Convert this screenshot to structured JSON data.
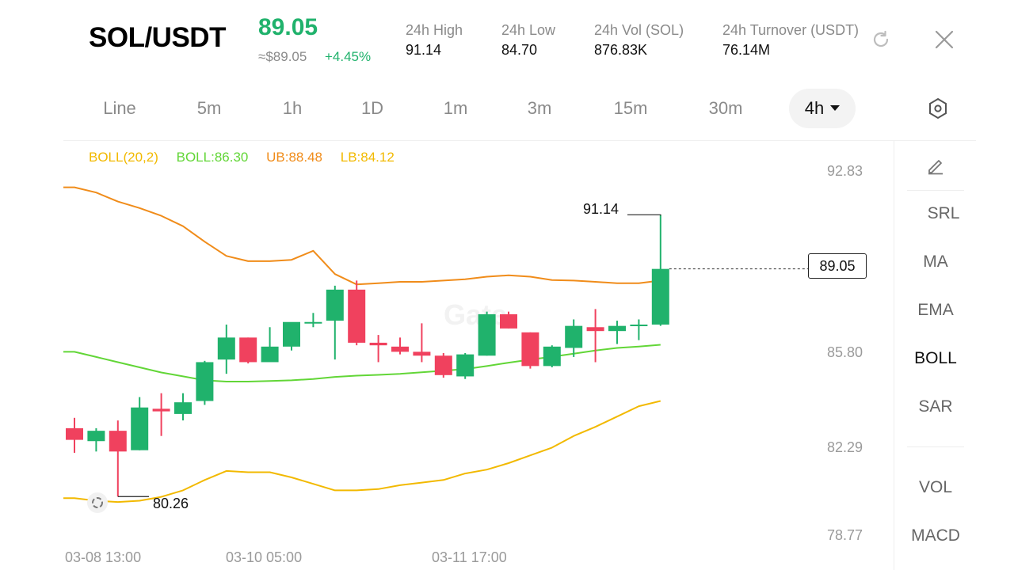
{
  "header": {
    "pair": "SOL/USDT",
    "last_price": "89.05",
    "approx_price": "≈$89.05",
    "change_pct": "+4.45%",
    "stats": [
      {
        "label": "24h  High",
        "value": "91.14"
      },
      {
        "label": "24h  Low",
        "value": "84.70"
      },
      {
        "label": "24h  Vol (SOL)",
        "value": "876.83K"
      },
      {
        "label": "24h  Turnover (USDT)",
        "value": "76.14M"
      }
    ],
    "icons": {
      "refresh": "refresh-icon",
      "close": "close-icon"
    }
  },
  "timeframes": {
    "tabs": [
      "Line",
      "5m",
      "1h",
      "1D",
      "1m",
      "3m",
      "15m",
      "30m",
      "4h"
    ],
    "active": "4h",
    "settings_icon": "hexagon-settings-icon"
  },
  "legend": {
    "boll_params": "BOLL(20,2)",
    "boll_mid": "BOLL:86.30",
    "upper": "UB:88.48",
    "lower": "LB:84.12"
  },
  "sidebar": {
    "draw_icon": "pencil-icon",
    "items": [
      "SRL",
      "MA",
      "EMA",
      "BOLL",
      "SAR"
    ],
    "active": "BOLL",
    "lower_items": [
      "VOL",
      "MACD"
    ]
  },
  "chart_data": {
    "type": "candlestick",
    "y_axis_ticks": [
      "92.83",
      "85.80",
      "82.29",
      "78.77"
    ],
    "x_axis_ticks": [
      "03-08 13:00",
      "03-10 05:00",
      "03-11 17:00"
    ],
    "ylim": [
      78.77,
      92.83
    ],
    "current_price_label": "89.05",
    "high_marker": "91.14",
    "low_marker": "80.26",
    "colors": {
      "up": "#20b26c",
      "down": "#f0415e",
      "mid": "#62d637",
      "upper": "#f08c1a",
      "lower": "#f2b900"
    },
    "candles": [
      {
        "o": 82.9,
        "h": 83.3,
        "l": 81.95,
        "c": 82.45
      },
      {
        "o": 82.4,
        "h": 82.9,
        "l": 82.0,
        "c": 82.8
      },
      {
        "o": 82.8,
        "h": 83.2,
        "l": 80.26,
        "c": 82.0
      },
      {
        "o": 82.05,
        "h": 84.1,
        "l": 82.05,
        "c": 83.7
      },
      {
        "o": 83.65,
        "h": 84.25,
        "l": 82.6,
        "c": 83.55
      },
      {
        "o": 83.45,
        "h": 84.25,
        "l": 83.2,
        "c": 83.9
      },
      {
        "o": 83.95,
        "h": 85.5,
        "l": 83.8,
        "c": 85.45
      },
      {
        "o": 85.55,
        "h": 86.9,
        "l": 85.0,
        "c": 86.4
      },
      {
        "o": 86.4,
        "h": 86.4,
        "l": 85.4,
        "c": 85.45
      },
      {
        "o": 85.45,
        "h": 86.8,
        "l": 85.5,
        "c": 86.05
      },
      {
        "o": 86.05,
        "h": 86.9,
        "l": 85.9,
        "c": 87.0
      },
      {
        "o": 87.0,
        "h": 87.35,
        "l": 86.8,
        "c": 87.0
      },
      {
        "o": 87.05,
        "h": 88.4,
        "l": 85.55,
        "c": 88.25
      },
      {
        "o": 88.25,
        "h": 88.6,
        "l": 86.1,
        "c": 86.2
      },
      {
        "o": 86.2,
        "h": 86.5,
        "l": 85.45,
        "c": 86.1
      },
      {
        "o": 86.05,
        "h": 86.4,
        "l": 85.75,
        "c": 85.85
      },
      {
        "o": 85.85,
        "h": 86.95,
        "l": 85.45,
        "c": 85.7
      },
      {
        "o": 85.7,
        "h": 85.8,
        "l": 84.85,
        "c": 84.95
      },
      {
        "o": 84.9,
        "h": 85.8,
        "l": 84.8,
        "c": 85.75
      },
      {
        "o": 85.7,
        "h": 87.4,
        "l": 85.7,
        "c": 87.3
      },
      {
        "o": 87.3,
        "h": 87.4,
        "l": 86.75,
        "c": 86.75
      },
      {
        "o": 86.6,
        "h": 86.6,
        "l": 85.2,
        "c": 85.3
      },
      {
        "o": 85.3,
        "h": 86.1,
        "l": 85.25,
        "c": 86.05
      },
      {
        "o": 86.0,
        "h": 87.1,
        "l": 85.65,
        "c": 86.85
      },
      {
        "o": 86.8,
        "h": 87.5,
        "l": 85.45,
        "c": 86.65
      },
      {
        "o": 86.65,
        "h": 87.05,
        "l": 86.15,
        "c": 86.85
      },
      {
        "o": 86.85,
        "h": 87.1,
        "l": 86.3,
        "c": 86.9
      },
      {
        "o": 86.9,
        "h": 91.14,
        "l": 86.85,
        "c": 89.05
      }
    ],
    "boll_mid": [
      85.85,
      85.65,
      85.45,
      85.25,
      85.05,
      84.9,
      84.75,
      84.7,
      84.7,
      84.72,
      84.75,
      84.8,
      84.88,
      84.93,
      84.96,
      85.0,
      85.06,
      85.12,
      85.18,
      85.3,
      85.43,
      85.55,
      85.66,
      85.78,
      85.9,
      86.0,
      86.05,
      86.12
    ],
    "boll_upper": [
      92.2,
      92.0,
      91.65,
      91.4,
      91.1,
      90.7,
      90.1,
      89.55,
      89.35,
      89.35,
      89.4,
      89.75,
      88.85,
      88.45,
      88.5,
      88.55,
      88.55,
      88.6,
      88.65,
      88.75,
      88.8,
      88.75,
      88.62,
      88.6,
      88.55,
      88.5,
      88.5,
      88.6
    ],
    "boll_lower": [
      80.2,
      80.1,
      80.05,
      80.1,
      80.25,
      80.5,
      80.9,
      81.25,
      81.2,
      81.2,
      81.0,
      80.75,
      80.5,
      80.5,
      80.55,
      80.7,
      80.8,
      80.9,
      81.15,
      81.3,
      81.55,
      81.85,
      82.15,
      82.6,
      82.95,
      83.35,
      83.75,
      83.95
    ]
  }
}
